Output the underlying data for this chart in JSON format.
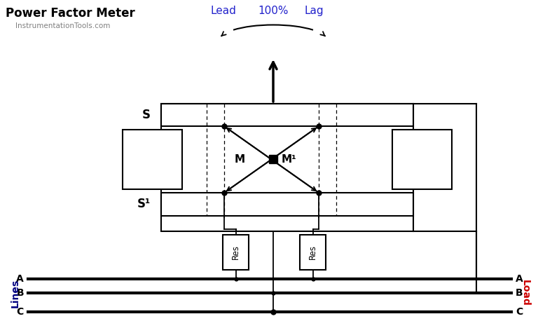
{
  "title": "Power Factor Meter",
  "subtitle": "InstrumentationTools.com",
  "title_color": "#000000",
  "subtitle_color": "#808080",
  "lead_lag_color": "#2222CC",
  "load_color": "#CC0000",
  "lines_color": "#000080",
  "bg_color": "#FFFFFF",
  "lead_text": "Lead",
  "pct_text": "100%",
  "lag_text": "Lag",
  "lines_label": "Lines",
  "load_label": "Load",
  "S_label": "S",
  "S1_label": "S¹",
  "M_label": "M",
  "M1_label": "M¹",
  "res_label": "Res",
  "line_labels_left": [
    "A",
    "B",
    "C"
  ],
  "line_labels_right": [
    "A",
    "B",
    "C"
  ]
}
